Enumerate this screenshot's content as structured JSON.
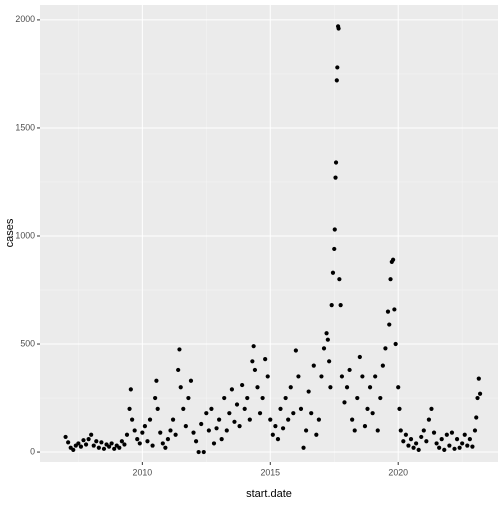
{
  "chart_data": {
    "type": "scatter",
    "x_label": "start.date",
    "y_label": "cases",
    "x": [
      2007.0,
      2007.1,
      2007.2,
      2007.3,
      2007.4,
      2007.5,
      2007.6,
      2007.7,
      2007.8,
      2007.9,
      2008.0,
      2008.1,
      2008.2,
      2008.3,
      2008.4,
      2008.5,
      2008.6,
      2008.7,
      2008.8,
      2008.9,
      2009.0,
      2009.1,
      2009.2,
      2009.3,
      2009.4,
      2009.5,
      2009.55,
      2009.6,
      2009.7,
      2009.8,
      2009.9,
      2010.0,
      2010.1,
      2010.2,
      2010.3,
      2010.4,
      2010.5,
      2010.55,
      2010.6,
      2010.7,
      2010.8,
      2010.9,
      2011.0,
      2011.1,
      2011.2,
      2011.3,
      2011.4,
      2011.45,
      2011.5,
      2011.6,
      2011.7,
      2011.8,
      2011.9,
      2012.0,
      2012.1,
      2012.2,
      2012.3,
      2012.4,
      2012.5,
      2012.6,
      2012.7,
      2012.8,
      2012.9,
      2013.0,
      2013.1,
      2013.2,
      2013.3,
      2013.4,
      2013.5,
      2013.6,
      2013.7,
      2013.8,
      2013.9,
      2014.0,
      2014.1,
      2014.2,
      2014.3,
      2014.35,
      2014.4,
      2014.5,
      2014.6,
      2014.7,
      2014.8,
      2014.9,
      2015.0,
      2015.1,
      2015.2,
      2015.3,
      2015.4,
      2015.5,
      2015.6,
      2015.7,
      2015.8,
      2015.9,
      2016.0,
      2016.1,
      2016.2,
      2016.3,
      2016.4,
      2016.5,
      2016.6,
      2016.7,
      2016.8,
      2016.9,
      2017.0,
      2017.1,
      2017.2,
      2017.25,
      2017.3,
      2017.35,
      2017.4,
      2017.45,
      2017.5,
      2017.52,
      2017.55,
      2017.57,
      2017.6,
      2017.62,
      2017.65,
      2017.67,
      2017.7,
      2017.75,
      2017.8,
      2017.9,
      2018.0,
      2018.1,
      2018.2,
      2018.3,
      2018.4,
      2018.5,
      2018.6,
      2018.7,
      2018.8,
      2018.9,
      2019.0,
      2019.1,
      2019.2,
      2019.3,
      2019.4,
      2019.5,
      2019.6,
      2019.65,
      2019.7,
      2019.75,
      2019.8,
      2019.85,
      2019.9,
      2020.0,
      2020.05,
      2020.1,
      2020.2,
      2020.3,
      2020.4,
      2020.5,
      2020.6,
      2020.7,
      2020.8,
      2020.9,
      2021.0,
      2021.1,
      2021.2,
      2021.3,
      2021.4,
      2021.5,
      2021.6,
      2021.7,
      2021.8,
      2021.9,
      2022.0,
      2022.1,
      2022.2,
      2022.3,
      2022.4,
      2022.5,
      2022.6,
      2022.7,
      2022.8,
      2022.9,
      2023.0,
      2023.05,
      2023.1,
      2023.15,
      2023.2
    ],
    "values": [
      70,
      45,
      20,
      10,
      30,
      40,
      25,
      55,
      35,
      60,
      80,
      30,
      50,
      20,
      45,
      15,
      35,
      25,
      40,
      15,
      30,
      20,
      50,
      35,
      80,
      200,
      290,
      150,
      100,
      60,
      40,
      90,
      120,
      50,
      150,
      30,
      250,
      330,
      200,
      90,
      40,
      20,
      60,
      100,
      150,
      80,
      380,
      475,
      300,
      200,
      120,
      250,
      330,
      90,
      50,
      0,
      130,
      0,
      180,
      100,
      200,
      40,
      110,
      150,
      60,
      250,
      100,
      180,
      290,
      140,
      220,
      120,
      310,
      200,
      250,
      150,
      420,
      490,
      380,
      300,
      180,
      250,
      430,
      350,
      150,
      80,
      120,
      60,
      200,
      110,
      250,
      150,
      300,
      180,
      470,
      350,
      200,
      20,
      100,
      280,
      180,
      400,
      80,
      150,
      350,
      480,
      550,
      520,
      420,
      300,
      680,
      830,
      940,
      1030,
      1270,
      1340,
      1720,
      1780,
      1970,
      1960,
      800,
      680,
      350,
      230,
      300,
      380,
      150,
      100,
      250,
      440,
      350,
      120,
      200,
      300,
      180,
      350,
      100,
      250,
      400,
      480,
      650,
      590,
      800,
      880,
      890,
      660,
      500,
      300,
      200,
      100,
      50,
      80,
      30,
      60,
      20,
      40,
      10,
      70,
      100,
      50,
      150,
      200,
      90,
      40,
      20,
      60,
      10,
      80,
      30,
      90,
      15,
      60,
      20,
      40,
      80,
      30,
      60,
      25,
      100,
      160,
      250,
      340,
      270
    ],
    "color": "#000000",
    "xlim": [
      2006.0,
      2023.9
    ],
    "xticks": [
      2010,
      2015,
      2020
    ],
    "ylim": [
      -46,
      2069
    ],
    "yticks": [
      0,
      500,
      1000,
      1500,
      2000
    ],
    "grid": true
  }
}
